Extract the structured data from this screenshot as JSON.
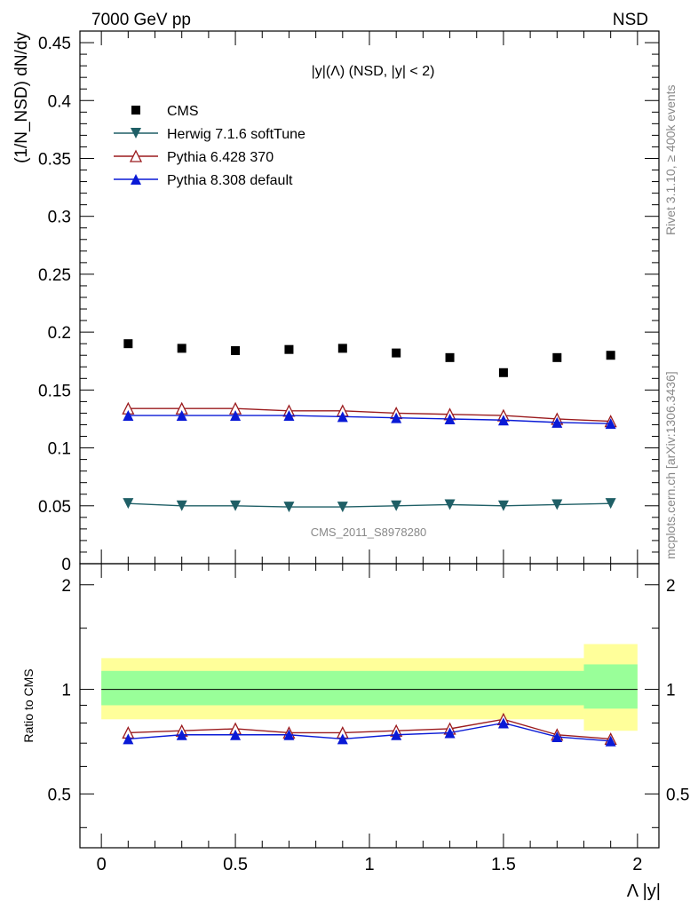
{
  "header": {
    "left_label": "7000 GeV pp",
    "right_label": "NSD"
  },
  "side_text": {
    "rivet": "Rivet 3.1.10, ≥ 400k events",
    "mcplots": "mcplots.cern.ch [arXiv:1306.3436]"
  },
  "chart_data": {
    "type": "scatter",
    "title": "|y|(Λ) (NSD, |y| < 2)",
    "analysis_label": "CMS_2011_S8978280",
    "ylabel_main": "(1/N_NSD) dN/dy",
    "ylabel_ratio": "Ratio to CMS",
    "xlabel": "Λ |y|",
    "xlim": [
      -0.08,
      2.08
    ],
    "ylim_main": [
      0,
      0.46
    ],
    "ylim_ratio": [
      0.35,
      2.3
    ],
    "x_ticks": [
      "0",
      "0.5",
      "1",
      "1.5",
      "2"
    ],
    "y_ticks_main": [
      "0",
      "0.05",
      "0.1",
      "0.15",
      "0.2",
      "0.25",
      "0.3",
      "0.35",
      "0.4",
      "0.45"
    ],
    "y_ticks_ratio": [
      "0.5",
      "1",
      "2"
    ],
    "x": [
      0.1,
      0.3,
      0.5,
      0.7,
      0.9,
      1.1,
      1.3,
      1.5,
      1.7,
      1.9
    ],
    "series": [
      {
        "name": "CMS",
        "marker": "square",
        "color": "#000000",
        "values": [
          0.19,
          0.186,
          0.184,
          0.185,
          0.186,
          0.182,
          0.178,
          0.165,
          0.178,
          0.18
        ]
      },
      {
        "name": "Herwig 7.1.6 softTune",
        "marker": "triangle-down",
        "color": "#1f5f66",
        "values": [
          0.052,
          0.05,
          0.05,
          0.049,
          0.049,
          0.05,
          0.051,
          0.05,
          0.051,
          0.052
        ]
      },
      {
        "name": "Pythia 6.428 370",
        "marker": "triangle-open",
        "color": "#9b1b1e",
        "values": [
          0.134,
          0.134,
          0.134,
          0.132,
          0.132,
          0.13,
          0.129,
          0.128,
          0.125,
          0.123
        ]
      },
      {
        "name": "Pythia 8.308 default",
        "marker": "triangle-up",
        "color": "#0a1ad6",
        "values": [
          0.128,
          0.128,
          0.128,
          0.128,
          0.127,
          0.126,
          0.125,
          0.124,
          0.122,
          0.121
        ]
      }
    ],
    "ratio_series": [
      {
        "name": "Pythia 6.428 370",
        "values": [
          0.75,
          0.76,
          0.77,
          0.75,
          0.75,
          0.76,
          0.77,
          0.82,
          0.74,
          0.72
        ]
      },
      {
        "name": "Pythia 8.308 default",
        "values": [
          0.72,
          0.74,
          0.74,
          0.74,
          0.72,
          0.74,
          0.75,
          0.8,
          0.73,
          0.71
        ]
      }
    ],
    "ratio_bands": {
      "yellow": [
        [
          0.0,
          1.8,
          0.82,
          1.23
        ],
        [
          1.8,
          2.0,
          0.76,
          1.35
        ]
      ],
      "green": [
        [
          0.0,
          1.8,
          0.9,
          1.13
        ],
        [
          1.8,
          2.0,
          0.88,
          1.18
        ]
      ]
    },
    "legend_position": "top-left",
    "colors": {
      "yellow_band": "#ffff9a",
      "green_band": "#99ff99"
    }
  }
}
